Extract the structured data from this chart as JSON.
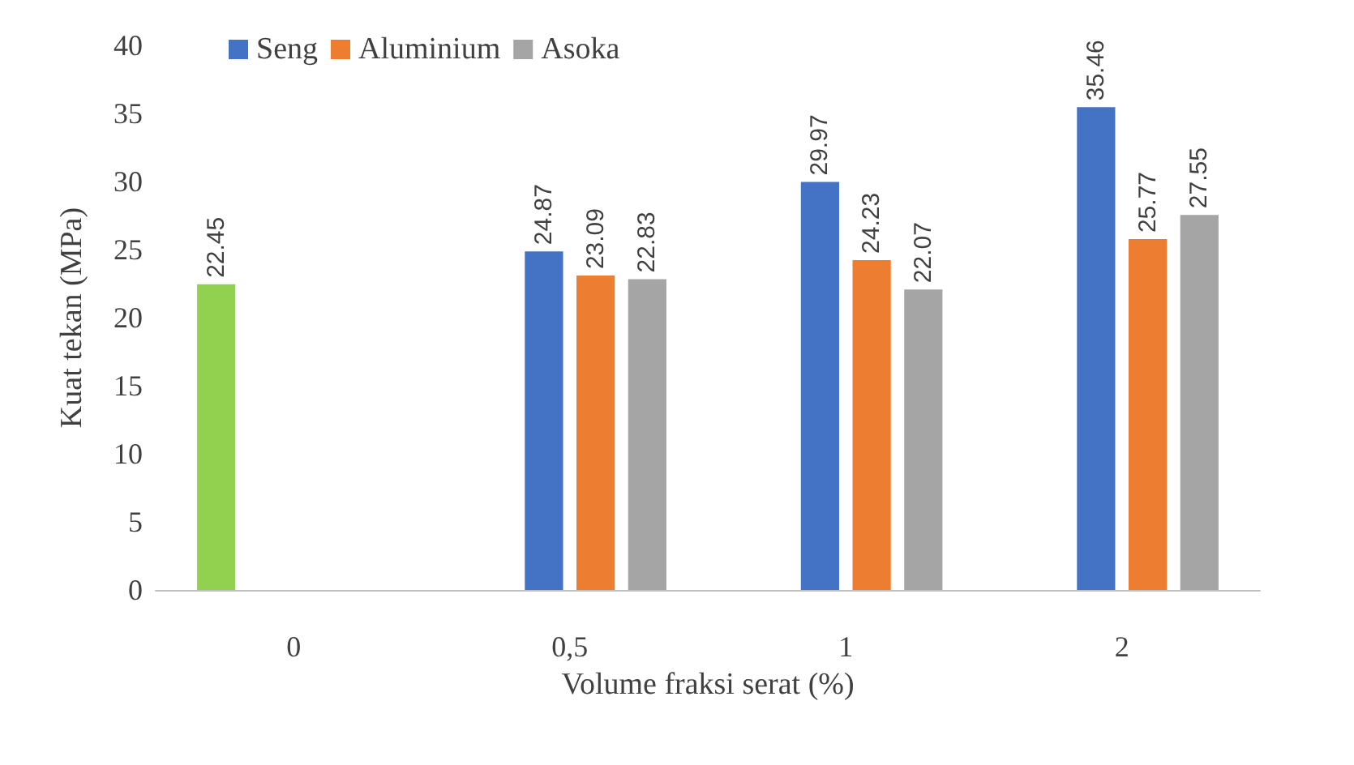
{
  "chart_data": {
    "type": "bar",
    "xlabel": "Volume fraksi serat (%)",
    "ylabel": "Kuat tekan (MPa)",
    "categories": [
      "0",
      "0,5",
      "1",
      "2"
    ],
    "series": [
      {
        "color": "#92d050",
        "values": [
          22.45,
          null,
          null,
          null
        ]
      },
      {
        "name": "Seng",
        "color": "#4472c4",
        "values": [
          null,
          24.87,
          29.97,
          35.46
        ]
      },
      {
        "name": "Aluminium",
        "color": "#ed7d31",
        "values": [
          null,
          23.09,
          24.23,
          25.77
        ]
      },
      {
        "name": "Asoka",
        "color": "#a5a5a5",
        "values": [
          null,
          22.83,
          22.07,
          27.55
        ]
      }
    ],
    "ylim": [
      0,
      40
    ],
    "yticks": [
      0,
      5,
      10,
      15,
      20,
      25,
      30,
      35,
      40
    ],
    "grid": false,
    "legend": "top left",
    "data_labels": true
  }
}
